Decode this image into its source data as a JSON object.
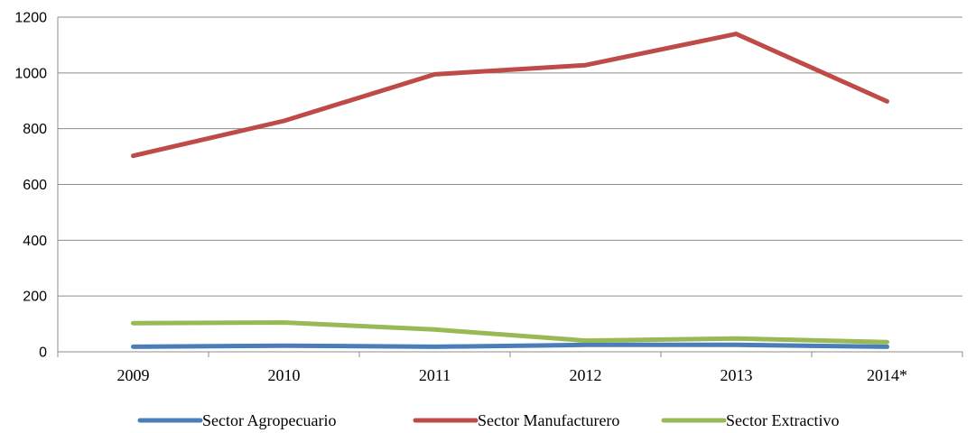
{
  "chart_data": {
    "type": "line",
    "title": "",
    "xlabel": "",
    "ylabel": "",
    "categories": [
      "2009",
      "2010",
      "2011",
      "2012",
      "2013",
      "2014*"
    ],
    "ylim": [
      0,
      1200
    ],
    "yticks": [
      0,
      200,
      400,
      600,
      800,
      1000,
      1200
    ],
    "grid": true,
    "legend_position": "bottom",
    "series": [
      {
        "name": "Sector Agropecuario",
        "color": "#4a7ebb",
        "values": [
          18,
          22,
          18,
          25,
          25,
          18
        ]
      },
      {
        "name": "Sector  Manufacturero",
        "color": "#be4b48",
        "values": [
          703,
          828,
          995,
          1028,
          1140,
          898
        ]
      },
      {
        "name": "Sector Extractivo",
        "color": "#98b954",
        "values": [
          103,
          105,
          80,
          40,
          48,
          35
        ]
      }
    ]
  }
}
